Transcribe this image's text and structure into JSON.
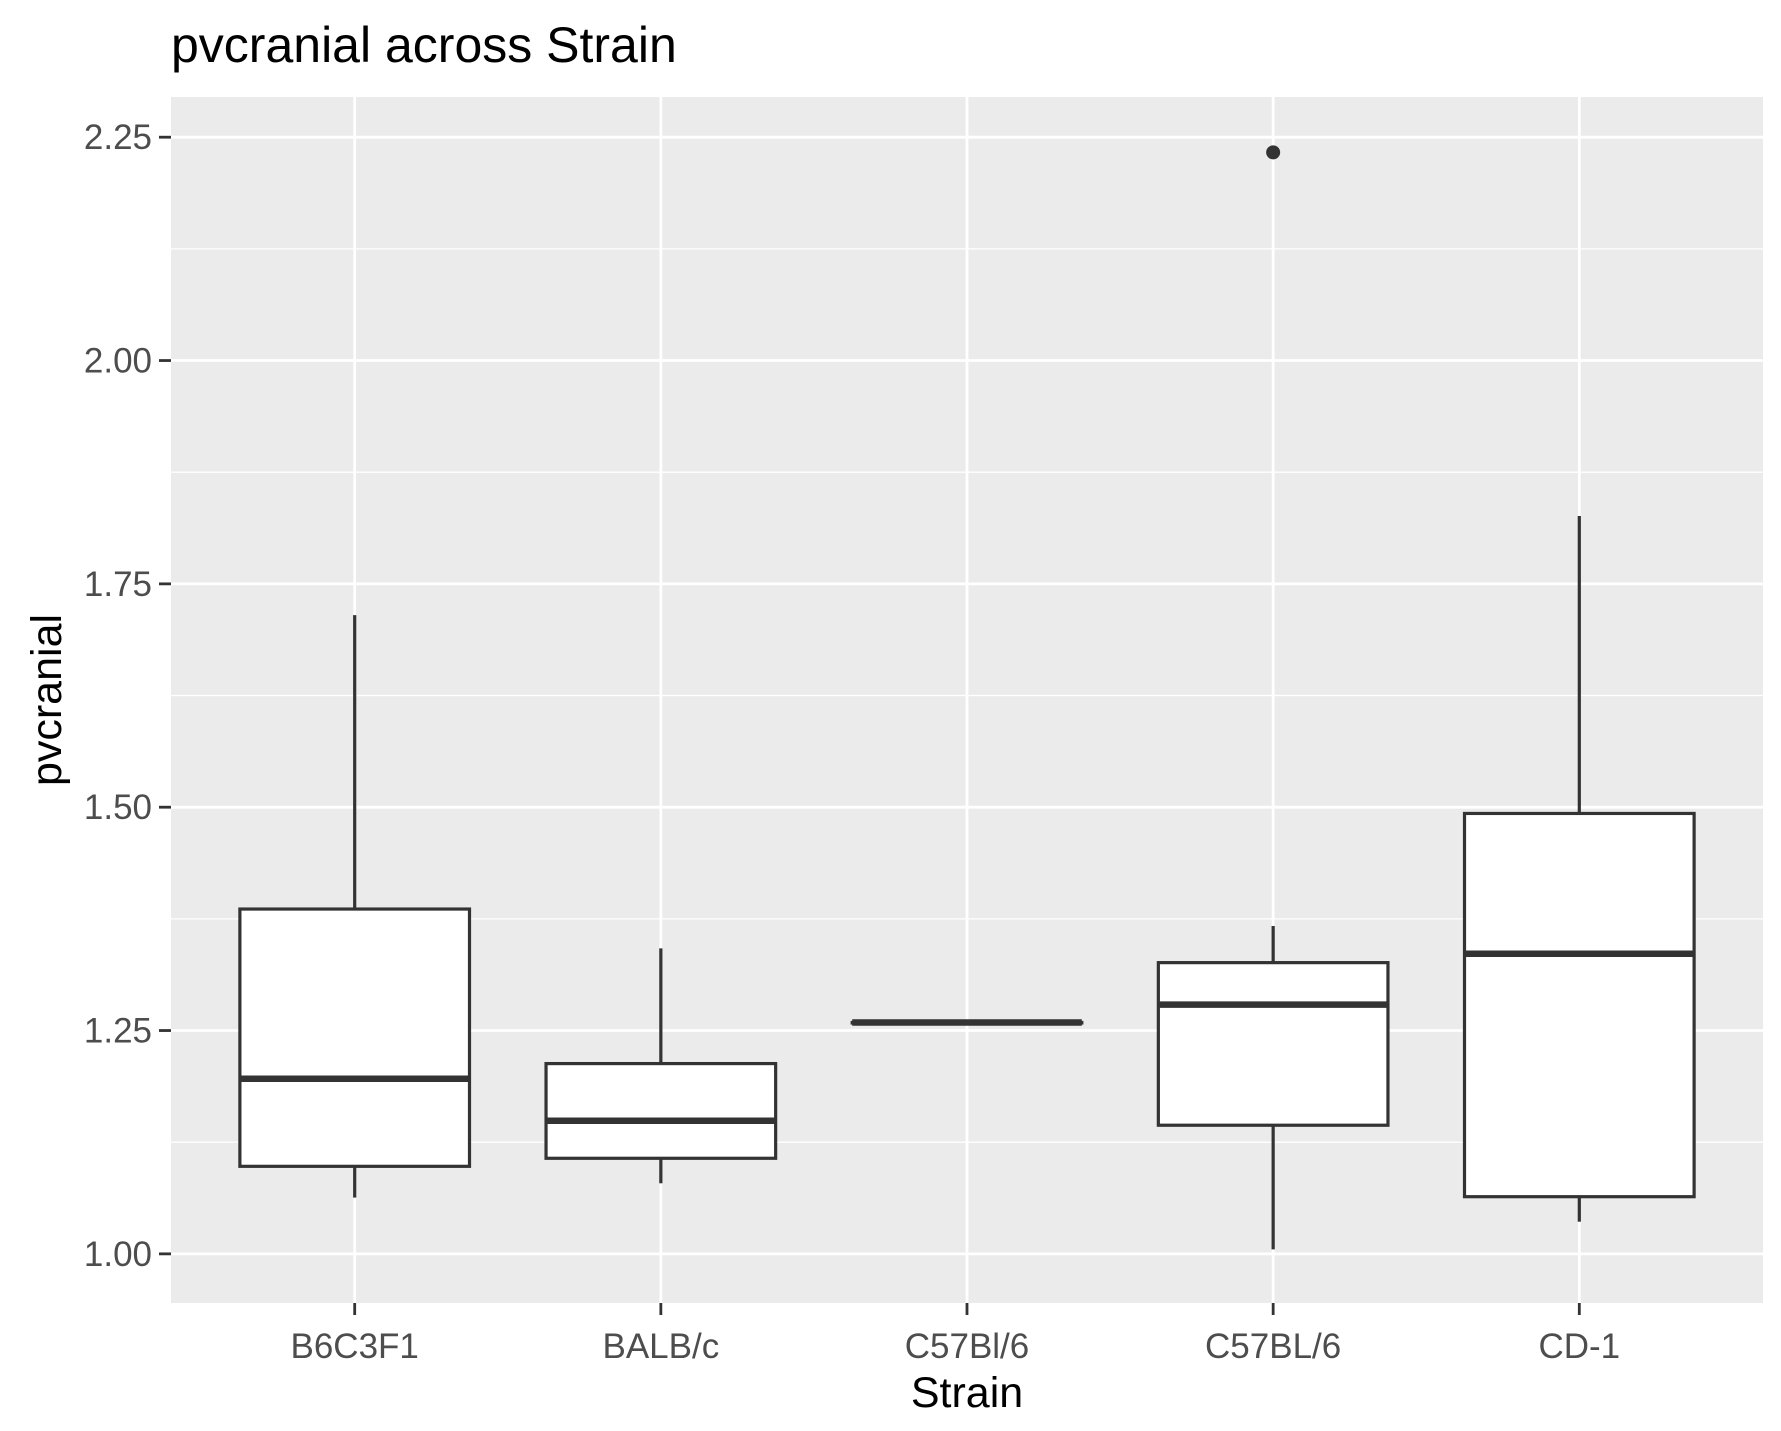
{
  "chart_data": {
    "type": "boxplot",
    "title": "pvcranial across Strain",
    "xlabel": "Strain",
    "ylabel": "pvcranial",
    "ylim": [
      0.945,
      2.295
    ],
    "yticks": [
      "1.00",
      "1.25",
      "1.50",
      "1.75",
      "2.00",
      "2.25"
    ],
    "grid": true,
    "categories": [
      "B6C3F1",
      "BALB/c",
      "C57Bl/6",
      "C57BL/6",
      "CD-1"
    ],
    "boxes": [
      {
        "category": "B6C3F1",
        "whisker_low": 1.063,
        "q1": 1.098,
        "median": 1.196,
        "q3": 1.386,
        "whisker_high": 1.715,
        "outliers": []
      },
      {
        "category": "BALB/c",
        "whisker_low": 1.079,
        "q1": 1.107,
        "median": 1.149,
        "q3": 1.213,
        "whisker_high": 1.342,
        "outliers": []
      },
      {
        "category": "C57Bl/6",
        "whisker_low": 1.259,
        "q1": 1.259,
        "median": 1.259,
        "q3": 1.259,
        "whisker_high": 1.259,
        "outliers": []
      },
      {
        "category": "C57BL/6",
        "whisker_low": 1.005,
        "q1": 1.144,
        "median": 1.279,
        "q3": 1.326,
        "whisker_high": 1.367,
        "outliers": [
          2.233
        ]
      },
      {
        "category": "CD-1",
        "whisker_low": 1.036,
        "q1": 1.064,
        "median": 1.336,
        "q3": 1.493,
        "whisker_high": 1.826,
        "outliers": []
      }
    ],
    "colors": {
      "panel": "#ebebeb",
      "grid": "#ffffff",
      "box_fill": "#ffffff",
      "box_line": "#333333",
      "tick_text": "#4d4d4d"
    }
  }
}
